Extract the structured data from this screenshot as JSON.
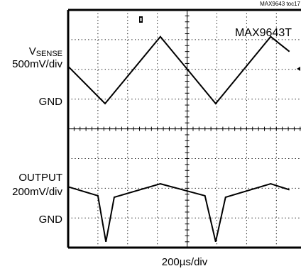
{
  "figure_id": "MAX9643 toc17",
  "part_label": "MAX9643T",
  "x_scale_label": "200µs/div",
  "channels": [
    {
      "name_main": "V",
      "name_sub": "SENSE",
      "scale": "500mV/div",
      "ground_label": "GND"
    },
    {
      "name_main": "OUTPUT",
      "name_sub": "",
      "scale": "200mV/div",
      "ground_label": "GND"
    }
  ],
  "chart_data": [
    {
      "type": "line",
      "x": [
        0,
        1.24,
        3.1,
        4.96,
        6.81,
        7.44
      ],
      "values": [
        4.2,
        1.7,
        6.2,
        1.7,
        6.2,
        5.2
      ],
      "xlim": [
        0,
        7.44
      ],
      "ylim": [
        0,
        8
      ],
      "grid": true
    },
    {
      "type": "line",
      "x": [
        0,
        1.0,
        1.27,
        1.55,
        3.1,
        4.6,
        4.96,
        5.29,
        6.81,
        7.44
      ],
      "values": [
        4.1,
        3.5,
        0.4,
        3.4,
        4.3,
        3.5,
        0.4,
        3.4,
        4.3,
        3.9
      ],
      "xlim": [
        0,
        7.44
      ],
      "ylim": [
        0,
        8
      ],
      "grid": true
    }
  ]
}
